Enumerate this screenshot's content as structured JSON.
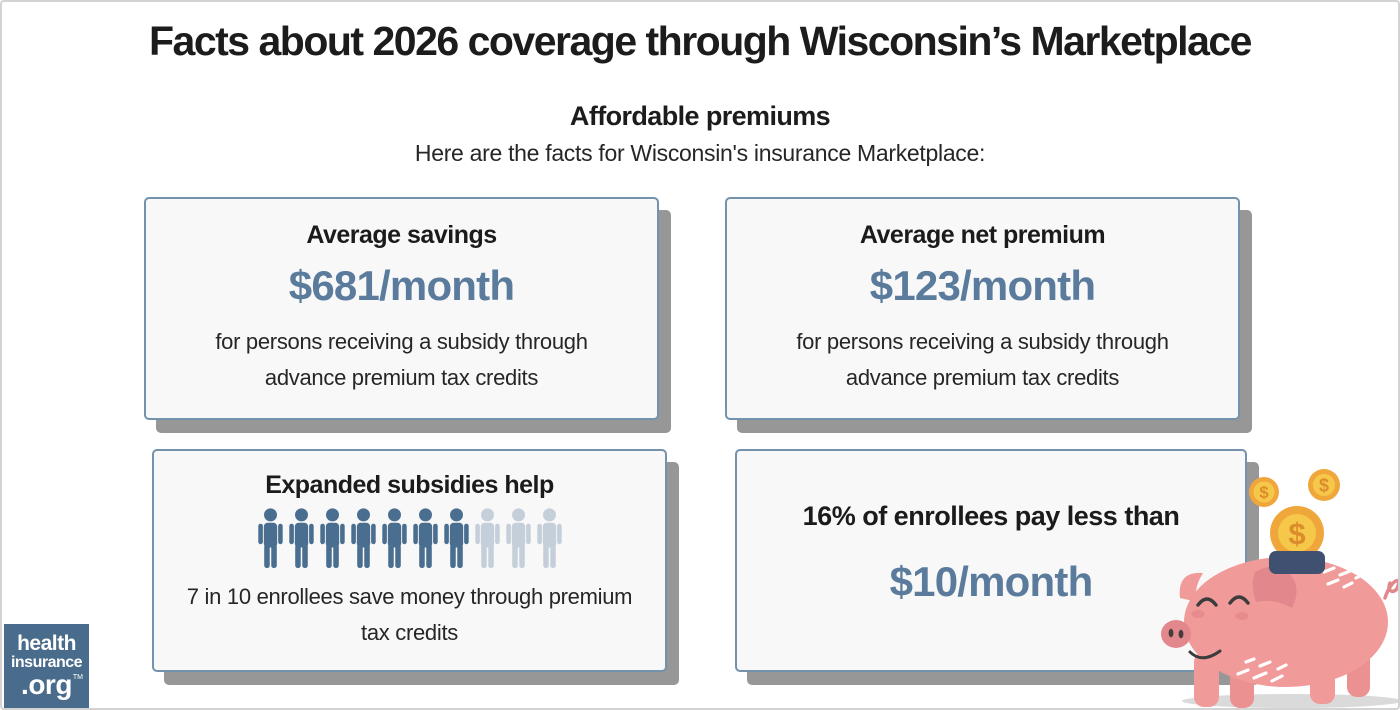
{
  "header": {
    "title": "Facts about 2026 coverage through Wisconsin’s Marketplace",
    "subtitle": "Affordable premiums",
    "intro": "Here are the facts for Wisconsin's insurance Marketplace:"
  },
  "cards": [
    {
      "heading": "Average savings",
      "value": "$681/month",
      "description": "for persons receiving a subsidy through advance premium tax credits"
    },
    {
      "heading": "Average net premium",
      "value": "$123/month",
      "description": "for persons receiving a subsidy through advance premium tax credits"
    },
    {
      "heading": "Expanded subsidies help",
      "pictograph": {
        "type": "pictograph",
        "total": 10,
        "highlighted": 7
      },
      "description": "7 in 10 enrollees save money through premium tax credits"
    },
    {
      "heading": "16% of enrollees pay less than",
      "value": "$10/month"
    }
  ],
  "logo": {
    "line1": "health",
    "line2": "insurance",
    "line3": ".org",
    "trademark": "TM"
  },
  "illustration": {
    "name": "piggy bank with coins",
    "coin_symbol": "$"
  },
  "colors": {
    "accent_blue": "#5b7b9d",
    "card_border": "#7492ab",
    "card_bg": "#f8f8f8",
    "shadow_gray": "#979797",
    "person_dark": "#4a6e8f",
    "person_light": "#c5cfda",
    "logo_bg": "#4a6c8c",
    "pig_pink": "#f19a9a",
    "pig_dark_pink": "#e2878b",
    "pig_leg_shade": "#ec9191",
    "coin_gold": "#efa73c",
    "coin_light": "#f6c84a",
    "coin_symbol_color": "#dd8c2b",
    "slot_navy": "#3f5070",
    "ground_shadow": "#dadada"
  }
}
